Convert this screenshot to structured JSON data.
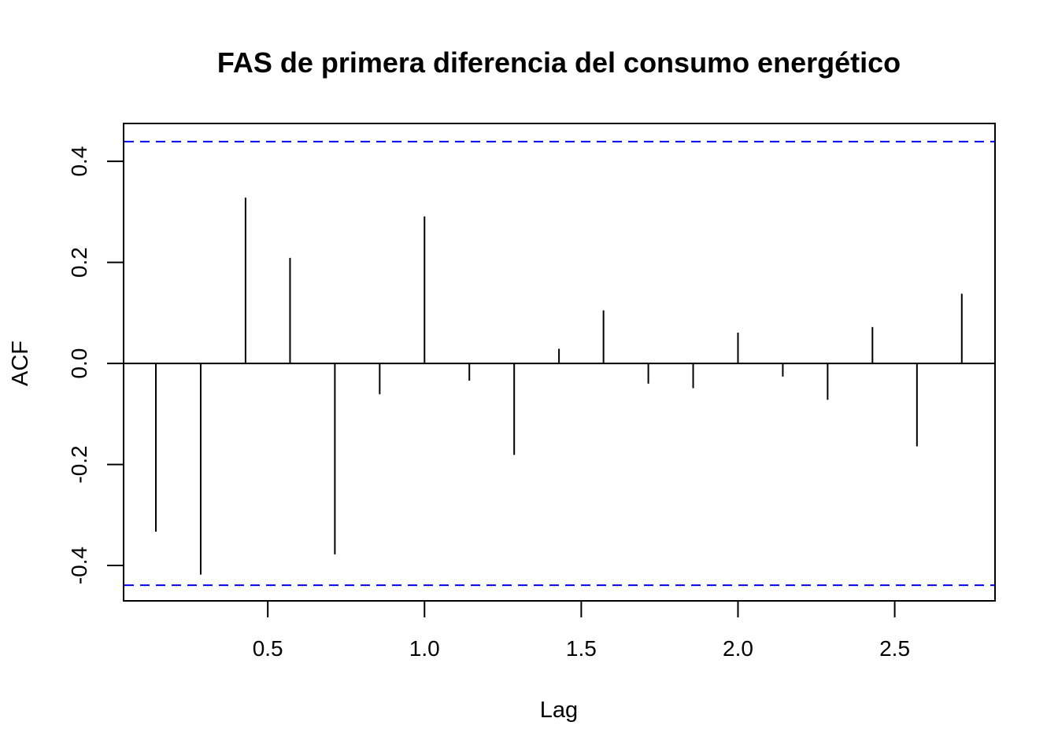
{
  "chart_data": {
    "type": "bar",
    "title": "FAS de primera diferencia del consumo energético",
    "xlabel": "Lag",
    "ylabel": "ACF",
    "xlim": [
      0.04,
      2.82
    ],
    "ylim": [
      -0.47,
      0.475
    ],
    "x_ticks": [
      {
        "value": 0.5,
        "label": "0.5"
      },
      {
        "value": 1.0,
        "label": "1.0"
      },
      {
        "value": 1.5,
        "label": "1.5"
      },
      {
        "value": 2.0,
        "label": "2.0"
      },
      {
        "value": 2.5,
        "label": "2.5"
      }
    ],
    "y_ticks": [
      {
        "value": -0.4,
        "label": "-0.4"
      },
      {
        "value": -0.2,
        "label": "-0.2"
      },
      {
        "value": 0.0,
        "label": "0.0"
      },
      {
        "value": 0.2,
        "label": "0.2"
      },
      {
        "value": 0.4,
        "label": "0.4"
      }
    ],
    "lags": [
      0.143,
      0.286,
      0.429,
      0.571,
      0.714,
      0.857,
      1.0,
      1.143,
      1.286,
      1.429,
      1.571,
      1.714,
      1.857,
      2.0,
      2.143,
      2.286,
      2.429,
      2.571,
      2.714
    ],
    "values": [
      -0.333,
      -0.418,
      0.328,
      0.209,
      -0.378,
      -0.061,
      0.291,
      -0.034,
      -0.181,
      0.029,
      0.105,
      -0.04,
      -0.049,
      0.061,
      -0.026,
      -0.072,
      0.072,
      -0.164,
      0.138
    ],
    "confidence_bound": 0.439,
    "grid": false,
    "colors": {
      "bars": "#000000",
      "zero_line": "#000000",
      "confidence_lines": "#0000ee"
    }
  }
}
